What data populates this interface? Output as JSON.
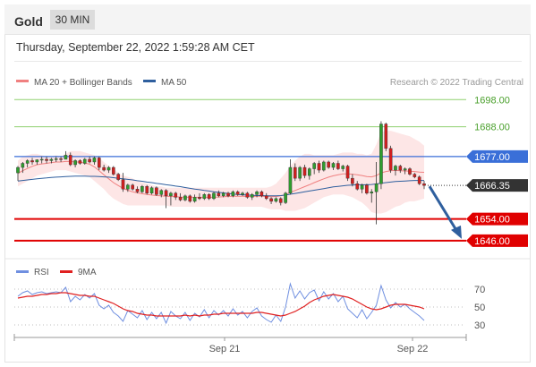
{
  "header": {
    "title": "Gold",
    "timeframe": "30 MIN"
  },
  "timestamp": "Thursday, September 22, 2022 1:59:28 AM CET",
  "legend": {
    "ma20_bb": "MA 20 + Bollinger Bands",
    "ma50": "MA 50",
    "source": "Research © 2022 Trading Central"
  },
  "rsi_legend": {
    "rsi": "RSI",
    "ma": "9MA"
  },
  "colors": {
    "ma20": "#f08080",
    "ma50": "#2f5f9e",
    "resistance": "#8fd06f",
    "support": "#e00000",
    "pivot": "#3a6fd8",
    "price": "#333333",
    "bands": "#fde2e2",
    "candle_up": "#2e9e2e",
    "candle_down": "#d11f1f",
    "rsi": "#6f8fe0",
    "rsi_ma": "#e02020",
    "arrow": "#2f5f9e"
  },
  "chart_data": {
    "type": "candlestick",
    "title": "Gold",
    "timeframe": "30 MIN",
    "ylim": [
      1641,
      1707
    ],
    "x_tick_labels": [
      "Sep 21",
      "Sep 22"
    ],
    "levels": [
      {
        "value": 1698.0,
        "label": "1698.00",
        "kind": "resistance"
      },
      {
        "value": 1688.0,
        "label": "1688.00",
        "kind": "resistance"
      },
      {
        "value": 1677.0,
        "label": "1677.00",
        "kind": "pivot"
      },
      {
        "value": 1666.35,
        "label": "1666.35",
        "kind": "last-price"
      },
      {
        "value": 1654.0,
        "label": "1654.00",
        "kind": "support"
      },
      {
        "value": 1646.0,
        "label": "1646.00",
        "kind": "support"
      }
    ],
    "forecast": {
      "from": 1667,
      "to": 1646
    },
    "candles": [
      [
        1671.0,
        1673.5,
        1668.0,
        1673.0
      ],
      [
        1673.0,
        1675.0,
        1671.0,
        1674.5
      ],
      [
        1674.5,
        1676.0,
        1673.0,
        1675.5
      ],
      [
        1675.5,
        1676.5,
        1674.0,
        1675.0
      ],
      [
        1675.0,
        1676.0,
        1674.0,
        1675.8
      ],
      [
        1675.8,
        1677.0,
        1674.5,
        1676.0
      ],
      [
        1676.0,
        1677.0,
        1674.5,
        1675.5
      ],
      [
        1675.5,
        1676.5,
        1674.5,
        1676.0
      ],
      [
        1676.0,
        1677.0,
        1675.0,
        1676.2
      ],
      [
        1676.2,
        1677.0,
        1675.0,
        1676.0
      ],
      [
        1676.0,
        1679.0,
        1676.0,
        1677.5
      ],
      [
        1677.5,
        1678.5,
        1673.5,
        1674.0
      ],
      [
        1674.0,
        1676.0,
        1673.0,
        1675.5
      ],
      [
        1675.5,
        1676.0,
        1674.0,
        1674.5
      ],
      [
        1674.5,
        1676.5,
        1674.0,
        1676.0
      ],
      [
        1676.0,
        1677.0,
        1674.5,
        1675.0
      ],
      [
        1675.0,
        1677.0,
        1674.0,
        1676.5
      ],
      [
        1676.5,
        1677.0,
        1672.0,
        1673.0
      ],
      [
        1673.0,
        1674.0,
        1671.5,
        1672.0
      ],
      [
        1672.0,
        1673.5,
        1671.0,
        1673.0
      ],
      [
        1673.0,
        1673.5,
        1670.0,
        1670.5
      ],
      [
        1670.5,
        1671.0,
        1668.0,
        1668.5
      ],
      [
        1668.5,
        1671.0,
        1664.0,
        1665.0
      ],
      [
        1665.0,
        1667.0,
        1664.0,
        1666.5
      ],
      [
        1666.5,
        1667.0,
        1664.5,
        1665.0
      ],
      [
        1665.0,
        1666.0,
        1663.5,
        1664.0
      ],
      [
        1664.0,
        1666.5,
        1663.5,
        1666.0
      ],
      [
        1666.0,
        1666.5,
        1663.0,
        1663.5
      ],
      [
        1663.5,
        1666.0,
        1663.0,
        1665.5
      ],
      [
        1665.5,
        1666.0,
        1662.5,
        1663.0
      ],
      [
        1663.0,
        1665.0,
        1662.0,
        1664.5
      ],
      [
        1664.5,
        1665.0,
        1658.0,
        1662.5
      ],
      [
        1662.5,
        1664.0,
        1659.0,
        1663.5
      ],
      [
        1663.5,
        1664.0,
        1661.0,
        1662.0
      ],
      [
        1662.0,
        1663.5,
        1660.5,
        1661.0
      ],
      [
        1661.0,
        1663.0,
        1660.5,
        1662.5
      ],
      [
        1662.5,
        1663.0,
        1660.0,
        1660.5
      ],
      [
        1660.5,
        1663.0,
        1660.0,
        1662.0
      ],
      [
        1662.0,
        1663.5,
        1661.0,
        1661.5
      ],
      [
        1661.5,
        1663.5,
        1661.0,
        1663.0
      ],
      [
        1663.0,
        1663.5,
        1661.0,
        1661.5
      ],
      [
        1661.5,
        1664.0,
        1661.0,
        1663.5
      ],
      [
        1663.5,
        1664.5,
        1662.0,
        1662.5
      ],
      [
        1662.5,
        1664.0,
        1662.0,
        1663.5
      ],
      [
        1663.5,
        1664.0,
        1662.0,
        1662.5
      ],
      [
        1662.5,
        1664.5,
        1662.0,
        1664.0
      ],
      [
        1664.0,
        1664.5,
        1662.5,
        1663.0
      ],
      [
        1663.0,
        1664.0,
        1662.5,
        1663.5
      ],
      [
        1663.5,
        1664.0,
        1661.5,
        1662.0
      ],
      [
        1662.0,
        1663.5,
        1661.0,
        1663.0
      ],
      [
        1663.0,
        1664.5,
        1662.0,
        1664.0
      ],
      [
        1664.0,
        1664.5,
        1662.0,
        1662.5
      ],
      [
        1662.5,
        1663.5,
        1661.0,
        1661.5
      ],
      [
        1661.5,
        1662.0,
        1659.5,
        1660.5
      ],
      [
        1660.5,
        1662.0,
        1660.0,
        1661.5
      ],
      [
        1661.5,
        1662.0,
        1659.0,
        1660.0
      ],
      [
        1660.0,
        1664.0,
        1659.5,
        1663.5
      ],
      [
        1663.5,
        1676.0,
        1663.0,
        1673.0
      ],
      [
        1673.0,
        1674.5,
        1668.0,
        1669.0
      ],
      [
        1669.0,
        1673.5,
        1668.0,
        1673.0
      ],
      [
        1673.0,
        1674.0,
        1669.0,
        1670.0
      ],
      [
        1670.0,
        1673.0,
        1668.5,
        1672.5
      ],
      [
        1672.5,
        1675.0,
        1670.5,
        1674.5
      ],
      [
        1674.5,
        1675.5,
        1671.0,
        1672.0
      ],
      [
        1672.0,
        1675.5,
        1671.5,
        1675.0
      ],
      [
        1675.0,
        1675.5,
        1672.5,
        1673.0
      ],
      [
        1673.0,
        1675.0,
        1672.0,
        1674.5
      ],
      [
        1674.5,
        1675.5,
        1672.0,
        1672.5
      ],
      [
        1672.5,
        1674.0,
        1671.5,
        1673.5
      ],
      [
        1673.5,
        1674.0,
        1668.0,
        1669.0
      ],
      [
        1669.0,
        1670.5,
        1666.0,
        1667.0
      ],
      [
        1667.0,
        1668.0,
        1664.5,
        1665.0
      ],
      [
        1665.0,
        1667.0,
        1663.5,
        1666.5
      ],
      [
        1666.5,
        1667.0,
        1663.0,
        1663.5
      ],
      [
        1663.5,
        1665.0,
        1660.0,
        1664.0
      ],
      [
        1664.0,
        1675.0,
        1652.0,
        1667.0
      ],
      [
        1667.0,
        1690.0,
        1665.0,
        1689.0
      ],
      [
        1689.0,
        1689.5,
        1679.0,
        1680.0
      ],
      [
        1680.0,
        1681.0,
        1671.0,
        1672.0
      ],
      [
        1672.0,
        1674.0,
        1670.0,
        1673.5
      ],
      [
        1673.5,
        1674.0,
        1671.0,
        1672.0
      ],
      [
        1672.0,
        1673.0,
        1670.5,
        1672.5
      ],
      [
        1672.5,
        1673.0,
        1670.0,
        1670.5
      ],
      [
        1670.5,
        1671.0,
        1669.0,
        1669.5
      ],
      [
        1669.5,
        1670.0,
        1666.5,
        1667.0
      ],
      [
        1667.0,
        1668.0,
        1665.0,
        1666.35
      ]
    ],
    "bollinger": {
      "upper": [
        1675.5,
        1677.0,
        1677.5,
        1678.0,
        1678.0,
        1677.5,
        1677.0,
        1677.0,
        1677.5,
        1677.0,
        1678.0,
        1679.0,
        1679.0,
        1679.0,
        1678.5,
        1678.0,
        1677.5,
        1676.5,
        1675.0,
        1673.5,
        1672.5,
        1671.0,
        1670.0,
        1669.5,
        1669.0,
        1668.0,
        1667.5,
        1667.0,
        1666.5,
        1666.0,
        1666.0,
        1665.5,
        1665.5,
        1665.5,
        1665.5,
        1665.5,
        1665.5,
        1665.5,
        1665.5,
        1665.5,
        1665.5,
        1665.5,
        1665.5,
        1665.5,
        1665.5,
        1665.5,
        1665.5,
        1665.5,
        1665.5,
        1665.5,
        1665.5,
        1665.5,
        1665.5,
        1666.0,
        1667.0,
        1669.0,
        1671.0,
        1673.5,
        1675.5,
        1677.0,
        1678.0,
        1678.0,
        1677.5,
        1677.5,
        1677.5,
        1677.5,
        1677.5,
        1678.0,
        1678.5,
        1678.5,
        1678.5,
        1678.0,
        1678.0,
        1677.5,
        1678.0,
        1681.5,
        1686.0,
        1686.5,
        1686.5,
        1686.0,
        1685.5,
        1685.0,
        1684.5,
        1683.5,
        1682.5,
        1681.0
      ],
      "lower": [
        1666.0,
        1667.0,
        1668.0,
        1669.0,
        1670.0,
        1670.5,
        1671.0,
        1671.5,
        1672.0,
        1672.0,
        1672.0,
        1671.5,
        1671.0,
        1670.5,
        1670.0,
        1669.5,
        1668.0,
        1666.5,
        1665.0,
        1663.0,
        1661.5,
        1660.5,
        1659.5,
        1659.0,
        1659.0,
        1659.0,
        1659.0,
        1659.0,
        1659.0,
        1659.0,
        1659.0,
        1659.0,
        1658.5,
        1658.5,
        1658.5,
        1658.5,
        1658.5,
        1658.5,
        1658.5,
        1658.5,
        1658.5,
        1658.5,
        1658.5,
        1658.5,
        1658.5,
        1658.5,
        1658.5,
        1658.5,
        1658.5,
        1658.5,
        1658.5,
        1658.5,
        1658.0,
        1657.5,
        1657.5,
        1657.5,
        1657.0,
        1657.0,
        1657.0,
        1657.5,
        1658.0,
        1659.0,
        1660.0,
        1661.0,
        1662.0,
        1662.5,
        1663.0,
        1663.0,
        1663.0,
        1662.5,
        1662.0,
        1661.0,
        1660.0,
        1658.5,
        1656.5,
        1656.0,
        1656.0,
        1656.5,
        1657.5,
        1658.5,
        1659.0,
        1660.0,
        1660.5,
        1660.5,
        1661.0,
        1661.5
      ]
    },
    "ma20": [
      1670.8,
      1671.8,
      1672.6,
      1673.4,
      1674.0,
      1674.3,
      1674.5,
      1674.8,
      1675.0,
      1675.0,
      1675.2,
      1675.2,
      1675.0,
      1675.0,
      1674.6,
      1674.2,
      1673.2,
      1671.8,
      1670.3,
      1668.8,
      1667.4,
      1666.3,
      1665.3,
      1664.6,
      1664.0,
      1663.6,
      1663.3,
      1663.0,
      1662.8,
      1662.6,
      1662.5,
      1662.4,
      1662.3,
      1662.2,
      1662.1,
      1662.0,
      1662.0,
      1662.0,
      1662.0,
      1662.0,
      1662.0,
      1662.0,
      1662.1,
      1662.2,
      1662.3,
      1662.4,
      1662.4,
      1662.4,
      1662.3,
      1662.3,
      1662.4,
      1662.4,
      1662.3,
      1662.2,
      1662.3,
      1662.5,
      1663.0,
      1663.8,
      1664.5,
      1665.2,
      1665.9,
      1666.6,
      1667.4,
      1668.1,
      1668.8,
      1669.4,
      1669.9,
      1670.3,
      1670.6,
      1670.6,
      1670.5,
      1670.3,
      1670.0,
      1669.6,
      1669.5,
      1670.0,
      1671.0,
      1671.5,
      1671.8,
      1671.9,
      1671.8,
      1671.7,
      1671.6,
      1671.5,
      1671.3,
      1671.2
    ],
    "ma50": [
      1668.0,
      1668.2,
      1668.4,
      1668.6,
      1668.8,
      1669.0,
      1669.1,
      1669.3,
      1669.4,
      1669.5,
      1669.6,
      1669.7,
      1669.8,
      1669.8,
      1669.8,
      1669.7,
      1669.7,
      1669.6,
      1669.5,
      1669.4,
      1669.2,
      1669.0,
      1668.8,
      1668.6,
      1668.4,
      1668.1,
      1667.9,
      1667.6,
      1667.4,
      1667.1,
      1666.9,
      1666.6,
      1666.4,
      1666.1,
      1665.9,
      1665.6,
      1665.3,
      1665.0,
      1664.8,
      1664.5,
      1664.3,
      1664.0,
      1663.8,
      1663.6,
      1663.4,
      1663.2,
      1663.0,
      1662.9,
      1662.8,
      1662.7,
      1662.6,
      1662.6,
      1662.5,
      1662.5,
      1662.5,
      1662.6,
      1662.8,
      1663.1,
      1663.4,
      1663.7,
      1664.0,
      1664.3,
      1664.6,
      1664.9,
      1665.2,
      1665.5,
      1665.8,
      1666.0,
      1666.2,
      1666.4,
      1666.5,
      1666.6,
      1666.6,
      1666.6,
      1666.7,
      1666.9,
      1667.2,
      1667.4,
      1667.6,
      1667.8,
      1667.9,
      1668.0,
      1668.1,
      1668.2,
      1668.2,
      1668.2
    ],
    "rsi": {
      "ylim": [
        20,
        78
      ],
      "ticks": [
        70,
        50,
        30
      ],
      "rsi": [
        62,
        66,
        68,
        64,
        66,
        67,
        65,
        66,
        67,
        66,
        72,
        56,
        62,
        58,
        64,
        60,
        65,
        52,
        48,
        52,
        44,
        40,
        34,
        46,
        42,
        38,
        46,
        36,
        44,
        37,
        44,
        32,
        45,
        40,
        37,
        44,
        35,
        43,
        39,
        47,
        38,
        46,
        41,
        46,
        40,
        48,
        41,
        45,
        38,
        45,
        49,
        40,
        36,
        33,
        41,
        34,
        50,
        76,
        60,
        68,
        59,
        66,
        69,
        57,
        67,
        59,
        65,
        56,
        62,
        48,
        43,
        38,
        47,
        37,
        44,
        52,
        74,
        58,
        49,
        55,
        50,
        53,
        48,
        44,
        40,
        35
      ],
      "ma": [
        60,
        61,
        62,
        62,
        63,
        64,
        64,
        65,
        65,
        66,
        66,
        65,
        64,
        63,
        63,
        62,
        62,
        60,
        58,
        56,
        54,
        51,
        48,
        46,
        45,
        43,
        42,
        41,
        41,
        40,
        40,
        40,
        40,
        40,
        40,
        41,
        40,
        41,
        40,
        41,
        41,
        42,
        42,
        43,
        43,
        43,
        43,
        43,
        43,
        43,
        44,
        44,
        43,
        42,
        41,
        40,
        41,
        43,
        45,
        48,
        51,
        55,
        58,
        60,
        62,
        63,
        64,
        63,
        62,
        61,
        59,
        56,
        53,
        50,
        48,
        47,
        48,
        50,
        52,
        53,
        53,
        53,
        52,
        51,
        50,
        48
      ]
    }
  }
}
